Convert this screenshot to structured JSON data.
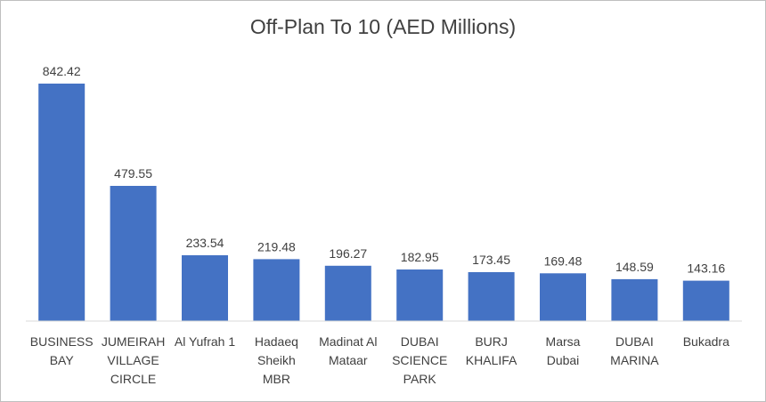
{
  "chart_data": {
    "type": "bar",
    "title": "Off-Plan To 10 (AED Millions)",
    "xlabel": "",
    "ylabel": "",
    "categories": [
      [
        "BUSINESS",
        "BAY"
      ],
      [
        "JUMEIRAH",
        "VILLAGE",
        "CIRCLE"
      ],
      [
        "Al Yufrah 1"
      ],
      [
        "Hadaeq",
        "Sheikh",
        "MBR"
      ],
      [
        "Madinat Al",
        "Mataar"
      ],
      [
        "DUBAI",
        "SCIENCE",
        "PARK"
      ],
      [
        "BURJ",
        "KHALIFA"
      ],
      [
        "Marsa",
        "Dubai"
      ],
      [
        "DUBAI",
        "MARINA"
      ],
      [
        "Bukadra"
      ]
    ],
    "values": [
      842.42,
      479.55,
      233.54,
      219.48,
      196.27,
      182.95,
      173.45,
      169.48,
      148.59,
      143.16
    ],
    "data_labels": [
      "842.42",
      "479.55",
      "233.54",
      "219.48",
      "196.27",
      "182.95",
      "173.45",
      "169.48",
      "148.59",
      "143.16"
    ],
    "ylim": [
      0,
      842.42
    ],
    "grid": false,
    "legend": "none",
    "bar_color": "#4472C4",
    "axis_color": "#d9d9d9",
    "text_color": "#404040"
  }
}
